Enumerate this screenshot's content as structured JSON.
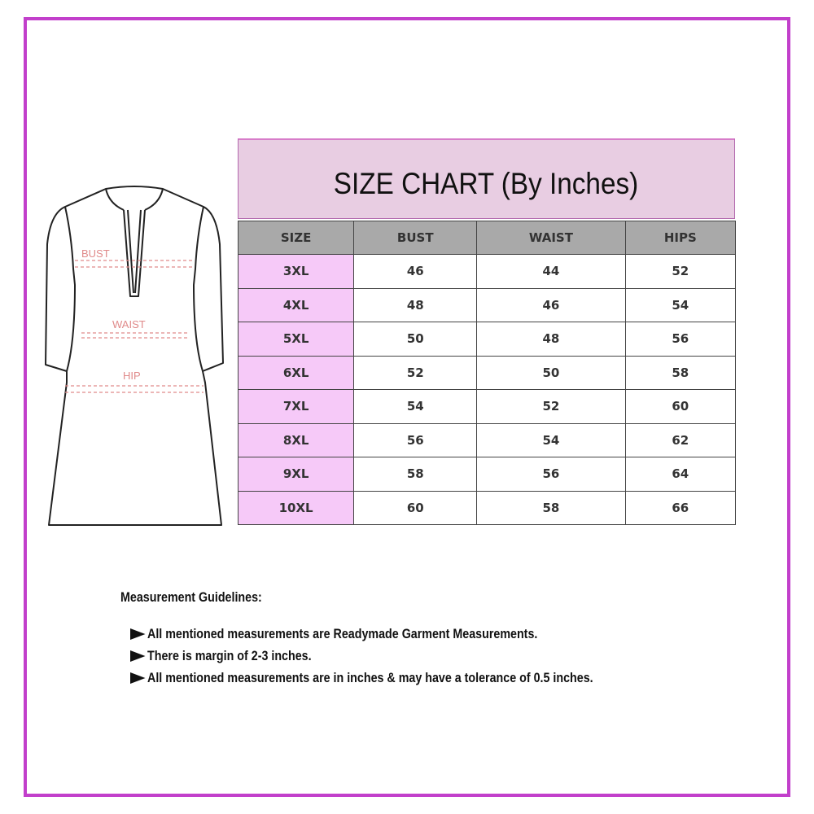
{
  "title": "SIZE CHART (By Inches)",
  "diagram_labels": {
    "bust": "BUST",
    "waist": "WAIST",
    "hip": "HIP"
  },
  "table": {
    "headers": [
      "SIZE",
      "BUST",
      "WAIST",
      "HIPS"
    ],
    "rows": [
      [
        "3XL",
        "46",
        "44",
        "52"
      ],
      [
        "4XL",
        "48",
        "46",
        "54"
      ],
      [
        "5XL",
        "50",
        "48",
        "56"
      ],
      [
        "6XL",
        "52",
        "50",
        "58"
      ],
      [
        "7XL",
        "54",
        "52",
        "60"
      ],
      [
        "8XL",
        "56",
        "54",
        "62"
      ],
      [
        "9XL",
        "58",
        "56",
        "64"
      ],
      [
        "10XL",
        "60",
        "58",
        "66"
      ]
    ]
  },
  "guidelines": {
    "title": "Measurement Guidelines:",
    "bullet_icon": "triangle-right-icon",
    "items": [
      "All mentioned measurements are Readymade Garment Measurements.",
      "There is margin of 2-3 inches.",
      "All mentioned measurements are in inches & may have a tolerance of 0.5 inches."
    ]
  },
  "colors": {
    "frame": "#c23fcb",
    "title_bg": "#e8cde2",
    "header_bg": "#a9a9a9",
    "size_col_bg": "#f6c9f8",
    "measure_label": "#e08080"
  }
}
